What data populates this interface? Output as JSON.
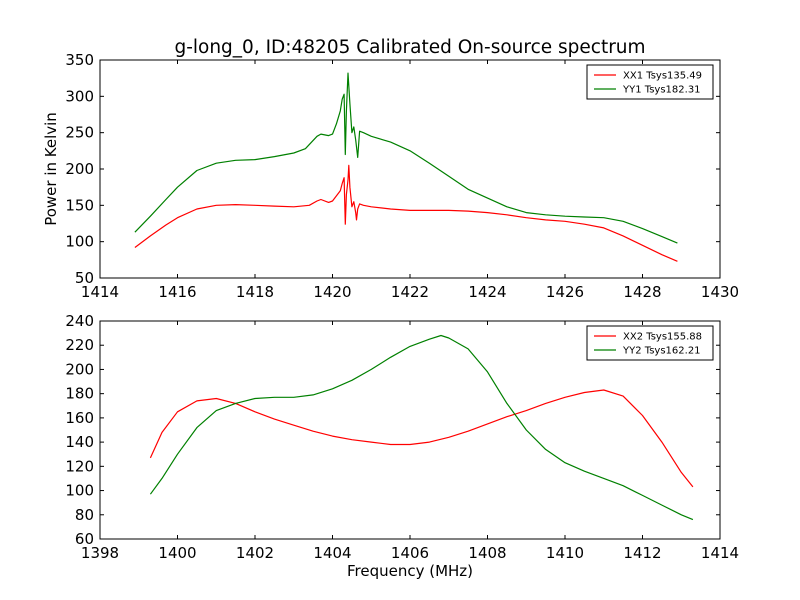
{
  "figure": {
    "title": "g-long_0, ID:48205 Calibrated On-source spectrum",
    "ylabel": "Power in Kelvin",
    "xlabel": "Frequency (MHz)"
  },
  "colors": {
    "red": "#ff0000",
    "green": "#008000"
  },
  "chart_data": [
    {
      "type": "line",
      "xlim": [
        1414,
        1430
      ],
      "ylim": [
        50,
        350
      ],
      "xticks": [
        1414,
        1416,
        1418,
        1420,
        1422,
        1424,
        1426,
        1428,
        1430
      ],
      "yticks": [
        50,
        100,
        150,
        200,
        250,
        300,
        350
      ],
      "legend": "top-right",
      "grid": false,
      "series": [
        {
          "name": "XX1 Tsys135.49",
          "color": "#ff0000",
          "x": [
            1414.9,
            1415.3,
            1415.7,
            1416.0,
            1416.5,
            1417.0,
            1417.5,
            1418.0,
            1418.5,
            1419.0,
            1419.4,
            1419.6,
            1419.7,
            1419.9,
            1420.0,
            1420.2,
            1420.25,
            1420.3,
            1420.33,
            1420.36,
            1420.4,
            1420.42,
            1420.45,
            1420.5,
            1420.55,
            1420.6,
            1420.62,
            1420.65,
            1420.7,
            1420.8,
            1421.0,
            1421.5,
            1422.0,
            1422.5,
            1423.0,
            1423.5,
            1424.0,
            1424.5,
            1425.0,
            1425.5,
            1426.0,
            1426.5,
            1427.0,
            1427.5,
            1428.0,
            1428.5,
            1428.9
          ],
          "y": [
            92,
            108,
            123,
            133,
            145,
            150,
            151,
            150,
            149,
            148,
            150,
            156,
            158,
            154,
            156,
            170,
            180,
            188,
            124,
            165,
            185,
            205,
            175,
            148,
            155,
            140,
            130,
            145,
            152,
            150,
            148,
            145,
            143,
            143,
            143,
            142,
            140,
            137,
            133,
            130,
            128,
            124,
            119,
            108,
            95,
            82,
            73
          ]
        },
        {
          "name": "YY1 Tsys182.31",
          "color": "#008000",
          "x": [
            1414.9,
            1415.3,
            1415.7,
            1416.0,
            1416.5,
            1417.0,
            1417.5,
            1418.0,
            1418.5,
            1419.0,
            1419.3,
            1419.6,
            1419.7,
            1419.9,
            1420.0,
            1420.1,
            1420.2,
            1420.25,
            1420.3,
            1420.33,
            1420.36,
            1420.4,
            1420.45,
            1420.5,
            1420.55,
            1420.6,
            1420.65,
            1420.7,
            1420.8,
            1421.0,
            1421.5,
            1422.0,
            1422.5,
            1423.0,
            1423.5,
            1424.0,
            1424.5,
            1425.0,
            1425.5,
            1426.0,
            1426.5,
            1427.0,
            1427.5,
            1428.0,
            1428.5,
            1428.9
          ],
          "y": [
            113,
            135,
            158,
            175,
            198,
            208,
            212,
            213,
            217,
            222,
            228,
            245,
            248,
            246,
            248,
            262,
            280,
            296,
            303,
            220,
            280,
            332,
            290,
            250,
            258,
            240,
            216,
            252,
            250,
            245,
            237,
            225,
            208,
            190,
            172,
            160,
            148,
            140,
            137,
            135,
            134,
            133,
            128,
            118,
            107,
            98
          ]
        }
      ]
    },
    {
      "type": "line",
      "xlim": [
        1398,
        1414
      ],
      "ylim": [
        60,
        240
      ],
      "xticks": [
        1398,
        1400,
        1402,
        1404,
        1406,
        1408,
        1410,
        1412,
        1414
      ],
      "yticks": [
        60,
        80,
        100,
        120,
        140,
        160,
        180,
        200,
        220,
        240
      ],
      "legend": "top-right",
      "grid": false,
      "series": [
        {
          "name": "XX2 Tsys155.88",
          "color": "#ff0000",
          "x": [
            1399.3,
            1399.6,
            1400.0,
            1400.5,
            1401.0,
            1401.5,
            1402.0,
            1402.5,
            1403.0,
            1403.5,
            1404.0,
            1404.5,
            1405.0,
            1405.5,
            1406.0,
            1406.5,
            1407.0,
            1407.5,
            1408.0,
            1408.5,
            1409.0,
            1409.5,
            1410.0,
            1410.5,
            1411.0,
            1411.5,
            1412.0,
            1412.5,
            1413.0,
            1413.3
          ],
          "y": [
            127,
            148,
            165,
            174,
            176,
            172,
            165,
            159,
            154,
            149,
            145,
            142,
            140,
            138,
            138,
            140,
            144,
            149,
            155,
            161,
            166,
            172,
            177,
            181,
            183,
            178,
            162,
            140,
            115,
            103
          ]
        },
        {
          "name": "YY2 Tsys162.21",
          "color": "#008000",
          "x": [
            1399.3,
            1399.6,
            1400.0,
            1400.5,
            1401.0,
            1401.5,
            1402.0,
            1402.5,
            1403.0,
            1403.5,
            1404.0,
            1404.5,
            1405.0,
            1405.5,
            1406.0,
            1406.5,
            1406.8,
            1407.0,
            1407.5,
            1408.0,
            1408.5,
            1409.0,
            1409.5,
            1410.0,
            1410.5,
            1411.0,
            1411.5,
            1412.0,
            1412.5,
            1413.0,
            1413.3
          ],
          "y": [
            97,
            110,
            130,
            152,
            166,
            172,
            176,
            177,
            177,
            179,
            184,
            191,
            200,
            210,
            219,
            225,
            228,
            226,
            217,
            198,
            172,
            150,
            134,
            123,
            116,
            110,
            104,
            96,
            88,
            80,
            76
          ]
        }
      ]
    }
  ]
}
